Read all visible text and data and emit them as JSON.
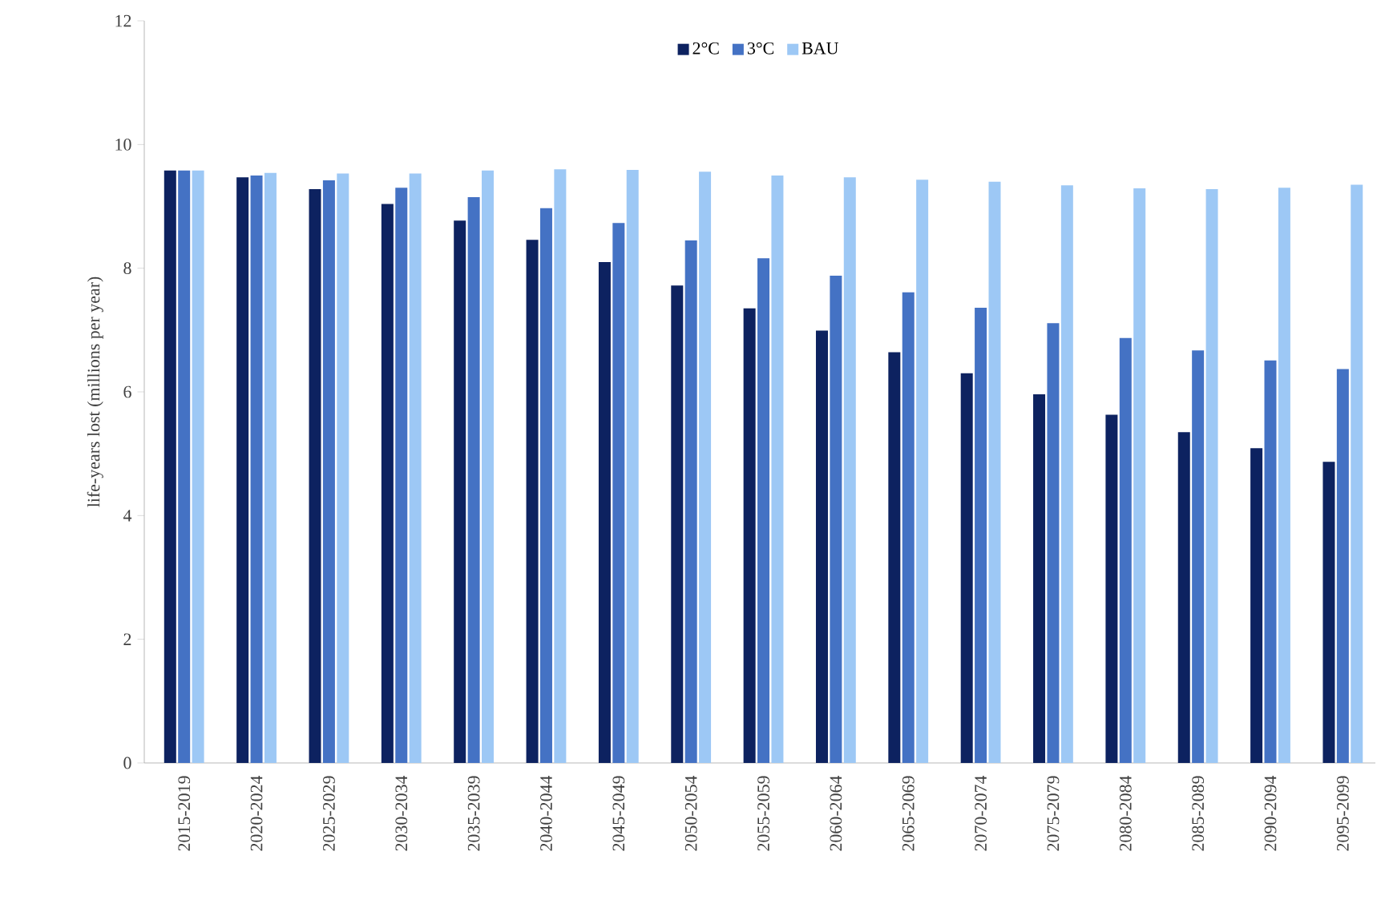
{
  "chart_data": {
    "type": "bar",
    "ylabel": "life-years lost (millions per year)",
    "categories": [
      "2015-2019",
      "2020-2024",
      "2025-2029",
      "2030-2034",
      "2035-2039",
      "2040-2044",
      "2045-2049",
      "2050-2054",
      "2055-2059",
      "2060-2064",
      "2065-2069",
      "2070-2074",
      "2075-2079",
      "2080-2084",
      "2085-2089",
      "2090-2094",
      "2095-2099"
    ],
    "series": [
      {
        "name": "2°C",
        "color": "#0d2260",
        "values": [
          9.58,
          9.47,
          9.28,
          9.04,
          8.77,
          8.46,
          8.1,
          7.72,
          7.35,
          6.99,
          6.64,
          6.3,
          5.96,
          5.63,
          5.35,
          5.09,
          4.87
        ]
      },
      {
        "name": "3°C",
        "color": "#4472c4",
        "values": [
          9.58,
          9.5,
          9.42,
          9.3,
          9.15,
          8.97,
          8.73,
          8.45,
          8.16,
          7.88,
          7.61,
          7.36,
          7.11,
          6.87,
          6.67,
          6.51,
          6.37
        ]
      },
      {
        "name": "BAU",
        "color": "#9dc8f5",
        "values": [
          9.58,
          9.54,
          9.53,
          9.53,
          9.58,
          9.6,
          9.59,
          9.56,
          9.5,
          9.47,
          9.43,
          9.4,
          9.34,
          9.29,
          9.28,
          9.3,
          9.35
        ]
      }
    ],
    "ylim": [
      0,
      12
    ],
    "yticks": [
      0,
      2,
      4,
      6,
      8,
      10,
      12
    ],
    "grid": false,
    "legend": "top"
  }
}
